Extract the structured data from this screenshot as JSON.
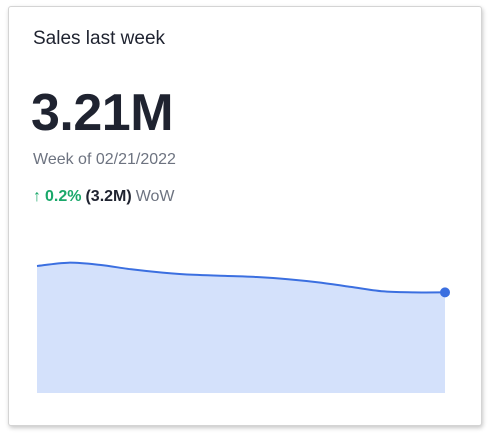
{
  "card": {
    "title": "Sales last week",
    "value": "3.21M",
    "period": "Week of 02/21/2022",
    "change": {
      "direction": "up",
      "arrow": "↑",
      "percent": "0.2%",
      "previous": "(3.2M)",
      "suffix": "WoW",
      "color": "#1aa86a"
    }
  },
  "colors": {
    "line": "#3b6fe0",
    "fill": "#d4e1fb",
    "text": "#1f2330",
    "muted": "#6d7380"
  },
  "chart_data": {
    "type": "area",
    "title": "",
    "xlabel": "",
    "ylabel": "",
    "grid": false,
    "ylim": [
      0,
      3.24
    ],
    "values": [
      3.235,
      3.238,
      3.236,
      3.232,
      3.229,
      3.227,
      3.226,
      3.225,
      3.223,
      3.22,
      3.216,
      3.212,
      3.211,
      3.211
    ]
  }
}
